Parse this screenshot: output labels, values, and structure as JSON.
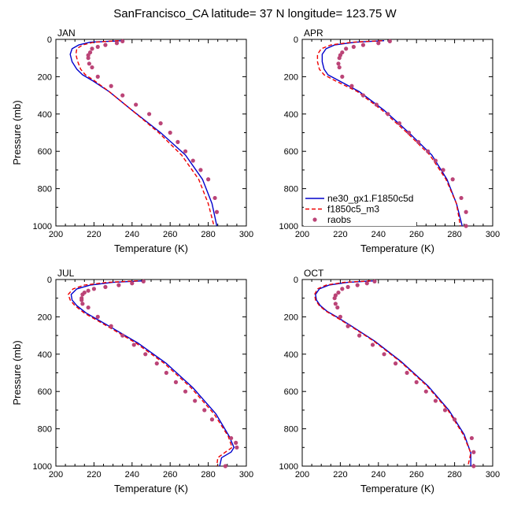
{
  "figure": {
    "title": "SanFrancisco_CA  latitude= 37 N longitude= 123.75 W"
  },
  "colors": {
    "model_1": "#0000cc",
    "model_2": "#ee0000",
    "obs": "#bb4477"
  },
  "chart_data": [
    {
      "type": "line",
      "panel": "JAN",
      "xlabel": "Temperature (K)",
      "ylabel": "Pressure (mb)",
      "xlim": [
        200,
        300
      ],
      "ylim": [
        1000,
        0
      ],
      "xticks": [
        200,
        220,
        240,
        260,
        280,
        300
      ],
      "yticks": [
        0,
        200,
        400,
        600,
        800,
        1000
      ],
      "series": [
        {
          "name": "ne30_gx1.F1850c5d",
          "style": "solid",
          "x": [
            235,
            218,
            212,
            208.5,
            207.5,
            208.5,
            211,
            214,
            219,
            228,
            240,
            255,
            268,
            277,
            282,
            284.5
          ],
          "y": [
            7,
            15,
            30,
            50,
            80,
            120,
            160,
            190,
            220,
            280,
            380,
            500,
            620,
            750,
            880,
            1000
          ]
        },
        {
          "name": "f1850c5_m3",
          "style": "dashed",
          "x": [
            233,
            220,
            214,
            211,
            210.5,
            211.5,
            213,
            215.5,
            220,
            228,
            240,
            254,
            266,
            275,
            280,
            283
          ],
          "y": [
            7,
            15,
            30,
            50,
            80,
            120,
            160,
            190,
            220,
            280,
            380,
            500,
            620,
            750,
            880,
            1000
          ]
        },
        {
          "name": "raobs",
          "style": "markers",
          "x": [
            235,
            232,
            226,
            222,
            219,
            218,
            217,
            217,
            217.5,
            219,
            222,
            229,
            235,
            242,
            249,
            255,
            260,
            264,
            268,
            272,
            276,
            280,
            283.5,
            284.5
          ],
          "y": [
            10,
            20,
            30,
            40,
            50,
            70,
            85,
            100,
            130,
            150,
            200,
            250,
            300,
            350,
            400,
            450,
            500,
            550,
            600,
            650,
            700,
            750,
            850,
            925
          ]
        }
      ]
    },
    {
      "type": "line",
      "panel": "APR",
      "xlabel": "Temperature (K)",
      "ylabel": "",
      "xlim": [
        200,
        300
      ],
      "ylim": [
        1000,
        0
      ],
      "xticks": [
        200,
        220,
        240,
        260,
        280,
        300
      ],
      "yticks": [
        0,
        200,
        400,
        600,
        800,
        1000
      ],
      "legend": {
        "placement": "bottom-left"
      },
      "series": [
        {
          "name": "ne30_gx1.F1850c5d",
          "style": "solid",
          "x": [
            243,
            228,
            217,
            212.5,
            210.5,
            210.5,
            211.5,
            213.5,
            219,
            230,
            243,
            256,
            268,
            276,
            281,
            284
          ],
          "y": [
            7,
            15,
            30,
            50,
            80,
            120,
            160,
            190,
            220,
            280,
            380,
            500,
            620,
            750,
            880,
            1000
          ]
        },
        {
          "name": "f1850c5_m3",
          "style": "dashed",
          "x": [
            242,
            226,
            215,
            210,
            208,
            208,
            209,
            211.5,
            217,
            229,
            242,
            255,
            267,
            275.5,
            281,
            283
          ],
          "y": [
            7,
            15,
            30,
            50,
            80,
            120,
            160,
            190,
            220,
            280,
            380,
            500,
            620,
            750,
            880,
            1000
          ]
        },
        {
          "name": "raobs",
          "style": "markers",
          "x": [
            246,
            240,
            232,
            227,
            223,
            221,
            220,
            219.5,
            219,
            219.5,
            221,
            226,
            232,
            239,
            245,
            251,
            256,
            261,
            266,
            270,
            274,
            279,
            283.5,
            286,
            286
          ],
          "y": [
            10,
            20,
            30,
            40,
            50,
            70,
            85,
            100,
            130,
            150,
            200,
            250,
            300,
            350,
            400,
            450,
            500,
            550,
            600,
            650,
            700,
            750,
            850,
            925,
            1000
          ]
        }
      ]
    },
    {
      "type": "line",
      "panel": "JUL",
      "xlabel": "Temperature (K)",
      "ylabel": "Pressure (mb)",
      "xlim": [
        200,
        300
      ],
      "ylim": [
        1000,
        0
      ],
      "xticks": [
        200,
        220,
        240,
        260,
        280,
        300
      ],
      "yticks": [
        0,
        200,
        400,
        600,
        800,
        1000
      ],
      "series": [
        {
          "name": "ne30_gx1.F1850c5d",
          "style": "solid",
          "x": [
            246,
            230,
            218,
            211,
            208,
            208.5,
            211,
            216,
            228,
            243,
            258,
            272,
            284,
            291,
            293.5,
            292,
            287,
            286
          ],
          "y": [
            7,
            15,
            30,
            50,
            80,
            110,
            140,
            180,
            250,
            340,
            450,
            580,
            720,
            840,
            900,
            925,
            955,
            1000
          ]
        },
        {
          "name": "f1850c5_m3",
          "style": "dashed",
          "x": [
            243,
            227,
            215,
            209,
            206.5,
            207.5,
            210,
            215,
            227,
            242,
            257,
            271,
            283,
            290.5,
            292.5,
            289,
            285,
            284.5
          ],
          "y": [
            7,
            15,
            30,
            50,
            80,
            110,
            140,
            180,
            250,
            340,
            450,
            580,
            720,
            840,
            900,
            925,
            955,
            1000
          ]
        },
        {
          "name": "raobs",
          "style": "markers",
          "x": [
            246,
            240,
            233,
            226,
            220,
            217,
            215,
            214,
            213.5,
            213.5,
            214,
            217,
            222,
            229,
            235,
            241,
            247,
            253,
            258,
            263,
            268,
            273,
            278,
            282,
            292,
            294.5,
            295,
            289
          ],
          "y": [
            10,
            20,
            30,
            40,
            50,
            60,
            70,
            80,
            100,
            110,
            130,
            150,
            200,
            250,
            300,
            350,
            400,
            450,
            500,
            550,
            600,
            650,
            700,
            750,
            850,
            875,
            900,
            1000
          ]
        }
      ]
    },
    {
      "type": "line",
      "panel": "OCT",
      "xlabel": "Temperature (K)",
      "ylabel": "",
      "xlim": [
        200,
        300
      ],
      "ylim": [
        1000,
        0
      ],
      "xticks": [
        200,
        220,
        240,
        260,
        280,
        300
      ],
      "yticks": [
        0,
        200,
        400,
        600,
        800,
        1000
      ],
      "series": [
        {
          "name": "ne30_gx1.F1850c5d",
          "style": "solid",
          "x": [
            238,
            224,
            214,
            209,
            207,
            207.5,
            209.5,
            213,
            218,
            226,
            238,
            252,
            266,
            277,
            285,
            288.5,
            288.5
          ],
          "y": [
            7,
            15,
            30,
            50,
            80,
            110,
            140,
            170,
            200,
            250,
            330,
            440,
            570,
            700,
            830,
            930,
            1000
          ]
        },
        {
          "name": "f1850c5_m3",
          "style": "dashed",
          "x": [
            236,
            222,
            212.5,
            208,
            206.5,
            207,
            209,
            212.5,
            217.5,
            225.5,
            237.5,
            251.5,
            265.5,
            276.5,
            284.5,
            288.5,
            287
          ],
          "y": [
            7,
            15,
            30,
            50,
            80,
            110,
            140,
            170,
            200,
            250,
            330,
            440,
            570,
            700,
            830,
            930,
            1000
          ]
        },
        {
          "name": "raobs",
          "style": "markers",
          "x": [
            238,
            234,
            229,
            224,
            221,
            219,
            217.5,
            217,
            217.5,
            218.5,
            220,
            224,
            230,
            237,
            243,
            249,
            255,
            260,
            265,
            270,
            275,
            280,
            289,
            290,
            290
          ],
          "y": [
            10,
            20,
            30,
            40,
            50,
            70,
            85,
            100,
            130,
            150,
            200,
            250,
            300,
            350,
            400,
            450,
            500,
            550,
            600,
            650,
            700,
            750,
            850,
            925,
            1000
          ]
        }
      ]
    }
  ]
}
